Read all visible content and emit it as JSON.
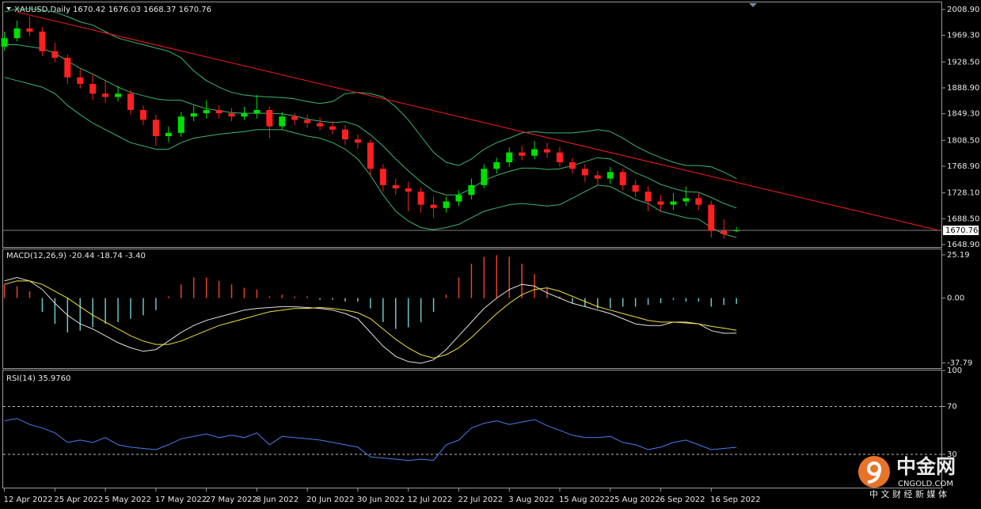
{
  "chart_data": [
    {
      "type": "candlestick",
      "title": "XAUUSD,Daily  1670.42 1676.03 1668.37 1670.76",
      "categories": [
        "12 Apr 2022",
        null,
        null,
        null,
        "25 Apr 2022",
        null,
        null,
        null,
        "5 May 2022",
        null,
        null,
        null,
        "17 May 2022",
        null,
        null,
        null,
        "27 May 2022",
        null,
        null,
        null,
        "8 Jun 2022",
        null,
        null,
        null,
        "20 Jun 2022",
        null,
        null,
        null,
        "30 Jun 2022",
        null,
        null,
        null,
        "12 Jul 2022",
        null,
        null,
        null,
        "22 Jul 2022",
        null,
        null,
        null,
        "3 Aug 2022",
        null,
        null,
        null,
        "15 Aug 2022",
        null,
        null,
        null,
        "25 Aug 2022",
        null,
        null,
        null,
        "6 Sep 2022",
        null,
        null,
        null,
        "16 Sep 2022",
        null,
        null
      ],
      "xlim": [
        -0.1,
        74.3
      ],
      "candles": [
        [
          1952,
          1975,
          1946,
          1965
        ],
        [
          1965,
          1992,
          1960,
          1980
        ],
        [
          1980,
          1998,
          1968,
          1975
        ],
        [
          1975,
          1982,
          1938,
          1945
        ],
        [
          1945,
          1958,
          1928,
          1935
        ],
        [
          1935,
          1940,
          1895,
          1905
        ],
        [
          1905,
          1918,
          1888,
          1895
        ],
        [
          1895,
          1910,
          1870,
          1880
        ],
        [
          1880,
          1900,
          1866,
          1875
        ],
        [
          1875,
          1892,
          1868,
          1880
        ],
        [
          1880,
          1886,
          1848,
          1855
        ],
        [
          1855,
          1862,
          1832,
          1840
        ],
        [
          1840,
          1848,
          1800,
          1815
        ],
        [
          1815,
          1830,
          1806,
          1820
        ],
        [
          1820,
          1852,
          1814,
          1845
        ],
        [
          1845,
          1862,
          1838,
          1850
        ],
        [
          1850,
          1870,
          1842,
          1855
        ],
        [
          1855,
          1862,
          1842,
          1850
        ],
        [
          1850,
          1858,
          1838,
          1845
        ],
        [
          1845,
          1860,
          1840,
          1850
        ],
        [
          1850,
          1878,
          1842,
          1855
        ],
        [
          1855,
          1860,
          1812,
          1830
        ],
        [
          1830,
          1852,
          1825,
          1845
        ],
        [
          1845,
          1850,
          1832,
          1840
        ],
        [
          1840,
          1848,
          1828,
          1835
        ],
        [
          1835,
          1844,
          1824,
          1830
        ],
        [
          1830,
          1838,
          1818,
          1825
        ],
        [
          1825,
          1832,
          1802,
          1810
        ],
        [
          1810,
          1818,
          1796,
          1805
        ],
        [
          1805,
          1810,
          1755,
          1765
        ],
        [
          1765,
          1772,
          1730,
          1740
        ],
        [
          1740,
          1750,
          1725,
          1735
        ],
        [
          1735,
          1745,
          1700,
          1730
        ],
        [
          1730,
          1736,
          1698,
          1710
        ],
        [
          1710,
          1722,
          1690,
          1705
        ],
        [
          1705,
          1722,
          1698,
          1715
        ],
        [
          1715,
          1732,
          1708,
          1725
        ],
        [
          1725,
          1750,
          1718,
          1740
        ],
        [
          1740,
          1772,
          1735,
          1765
        ],
        [
          1765,
          1782,
          1758,
          1775
        ],
        [
          1775,
          1798,
          1768,
          1790
        ],
        [
          1790,
          1800,
          1778,
          1785
        ],
        [
          1785,
          1808,
          1780,
          1795
        ],
        [
          1795,
          1805,
          1782,
          1790
        ],
        [
          1790,
          1798,
          1768,
          1775
        ],
        [
          1775,
          1782,
          1758,
          1765
        ],
        [
          1765,
          1772,
          1745,
          1755
        ],
        [
          1755,
          1762,
          1740,
          1750
        ],
        [
          1750,
          1768,
          1742,
          1760
        ],
        [
          1760,
          1765,
          1732,
          1740
        ],
        [
          1740,
          1748,
          1722,
          1730
        ],
        [
          1730,
          1738,
          1700,
          1715
        ],
        [
          1715,
          1725,
          1700,
          1710
        ],
        [
          1710,
          1728,
          1702,
          1715
        ],
        [
          1715,
          1738,
          1708,
          1720
        ],
        [
          1720,
          1728,
          1702,
          1710
        ],
        [
          1710,
          1716,
          1660,
          1670
        ],
        [
          1670,
          1688,
          1658,
          1665
        ],
        [
          1670.42,
          1676.03,
          1668.37,
          1670.76
        ]
      ],
      "up_color": "#00e000",
      "down_color": "#ff2020",
      "bands": {
        "color": "#3cb371",
        "upper": [
          2005,
          2010,
          2010,
          2008,
          2005,
          1998,
          1990,
          1985,
          1975,
          1965,
          1960,
          1955,
          1950,
          1945,
          1935,
          1915,
          1900,
          1890,
          1882,
          1878,
          1876,
          1875,
          1874,
          1872,
          1868,
          1865,
          1868,
          1880,
          1882,
          1880,
          1875,
          1860,
          1840,
          1815,
          1790,
          1775,
          1770,
          1780,
          1795,
          1805,
          1812,
          1820,
          1822,
          1820,
          1820,
          1820,
          1822,
          1825,
          1822,
          1812,
          1800,
          1790,
          1782,
          1775,
          1770,
          1770,
          1768,
          1760,
          1750
        ],
        "middle": [
          1955,
          1955,
          1952,
          1949,
          1942,
          1930,
          1919,
          1910,
          1900,
          1890,
          1882,
          1877,
          1872,
          1870,
          1870,
          1863,
          1857,
          1854,
          1851,
          1850,
          1850,
          1850,
          1849,
          1846,
          1841,
          1838,
          1836,
          1837,
          1831,
          1817,
          1800,
          1780,
          1762,
          1745,
          1731,
          1725,
          1725,
          1735,
          1747,
          1755,
          1761,
          1766,
          1766,
          1764,
          1765,
          1770,
          1776,
          1782,
          1780,
          1770,
          1759,
          1751,
          1741,
          1735,
          1730,
          1729,
          1721,
          1712,
          1705
        ],
        "lower": [
          1905,
          1900,
          1895,
          1890,
          1880,
          1862,
          1848,
          1835,
          1825,
          1815,
          1805,
          1800,
          1795,
          1795,
          1805,
          1812,
          1815,
          1818,
          1820,
          1822,
          1825,
          1825,
          1825,
          1820,
          1815,
          1812,
          1805,
          1795,
          1780,
          1755,
          1725,
          1700,
          1685,
          1675,
          1672,
          1675,
          1680,
          1690,
          1700,
          1705,
          1710,
          1712,
          1710,
          1708,
          1710,
          1720,
          1730,
          1740,
          1738,
          1728,
          1718,
          1712,
          1700,
          1695,
          1690,
          1688,
          1675,
          1665,
          1660
        ]
      },
      "trendline": {
        "color": "#ff1a1a",
        "x": [
          1,
          74
        ],
        "values": [
          2005,
          1671
        ]
      },
      "last_price": 1670.76,
      "last_price_color": "#808080",
      "ylim": [
        1645.3,
        2019.8
      ],
      "yticks": [
        {
          "value": 2008.9,
          "label": "2008.90"
        },
        {
          "value": 1969.3,
          "label": "1969.30"
        },
        {
          "value": 1928.5,
          "label": "1928.50"
        },
        {
          "value": 1888.9,
          "label": "1888.90"
        },
        {
          "value": 1849.3,
          "label": "1849.30"
        },
        {
          "value": 1808.5,
          "label": "1808.50"
        },
        {
          "value": 1768.9,
          "label": "1768.90"
        },
        {
          "value": 1728.1,
          "label": "1728.10"
        },
        {
          "value": 1688.5,
          "label": "1688.50"
        },
        {
          "value": 1648.9,
          "label": "1648.90"
        }
      ]
    },
    {
      "type": "macd",
      "title": "MACD(12,26,9) -20.44 -18.74 -3.40",
      "histogram": {
        "up_color": "#e8402a",
        "down_color": "#6fc6c6",
        "values": [
          8,
          7,
          4,
          -8,
          -15,
          -20,
          -19,
          -17,
          -15,
          -14,
          -12,
          -10,
          -7,
          1,
          8,
          12,
          12,
          10,
          8,
          6,
          5,
          1,
          2,
          1,
          1,
          -1,
          -1,
          -2,
          -2,
          -6,
          -14,
          -18,
          -17,
          -14,
          -8,
          2,
          12,
          20,
          24,
          25,
          24,
          20,
          14,
          6,
          1,
          -3,
          -5,
          -6,
          -6,
          -5,
          -5,
          -4,
          -3,
          -1,
          -2,
          -2,
          -5,
          -4,
          -3.4
        ]
      },
      "series": [
        {
          "color": "#e0e0e0",
          "values": [
            10,
            12,
            10,
            5,
            -3,
            -10,
            -15,
            -18,
            -22,
            -26,
            -29,
            -31,
            -30,
            -25,
            -20,
            -16,
            -13,
            -11,
            -9,
            -7,
            -6,
            -5.5,
            -5,
            -5,
            -5.5,
            -6,
            -7,
            -9,
            -12,
            -20,
            -28,
            -34,
            -37,
            -38,
            -36,
            -30,
            -22,
            -14,
            -6,
            0,
            5,
            8,
            7,
            3,
            0,
            -3,
            -5,
            -7,
            -9,
            -12,
            -15,
            -16,
            -16,
            -14,
            -14,
            -15,
            -19,
            -20.5,
            -20.44
          ]
        },
        {
          "color": "#f0e040",
          "values": [
            8,
            10,
            10,
            8,
            4,
            0,
            -5,
            -10,
            -14,
            -18,
            -22,
            -25,
            -27,
            -27,
            -25,
            -22,
            -19,
            -16,
            -14,
            -12,
            -10,
            -8,
            -7,
            -6,
            -6,
            -5.5,
            -6,
            -7,
            -8.5,
            -12,
            -18,
            -24,
            -29,
            -33,
            -35,
            -33,
            -29,
            -23,
            -16,
            -9,
            -3,
            2,
            5,
            6,
            4,
            1,
            -2,
            -5,
            -7,
            -9,
            -11,
            -13,
            -14,
            -14,
            -14.5,
            -15,
            -16.5,
            -17.5,
            -18.74
          ]
        }
      ],
      "ylim": [
        -40.8,
        28.4
      ],
      "yticks": [
        25.19,
        {
          "value": 0,
          "label": "0.00"
        },
        -37.79
      ]
    },
    {
      "type": "line",
      "title": "RSI(14) 35.9760",
      "series": [
        {
          "color": "#4a7cf0",
          "values": [
            58,
            60,
            55,
            52,
            48,
            40,
            42,
            40,
            44,
            38,
            36,
            35,
            34,
            38,
            43,
            45,
            47,
            44,
            46,
            44,
            48,
            38,
            45,
            44,
            43,
            42,
            40,
            38,
            36,
            28,
            27,
            26,
            25,
            26,
            25,
            38,
            42,
            52,
            56,
            58,
            55,
            57,
            59,
            54,
            50,
            46,
            44,
            44,
            45,
            40,
            38,
            34,
            36,
            40,
            42,
            38,
            34,
            35,
            35.976
          ]
        }
      ],
      "levels": [
        70,
        30
      ],
      "ylim": [
        2.3,
        100
      ],
      "yticks": [
        100,
        70,
        30
      ]
    }
  ],
  "watermark": {
    "logo": "中金网",
    "site": "CNGOLD.COM",
    "tagline": "中 文 财 经 新 媒 体"
  }
}
